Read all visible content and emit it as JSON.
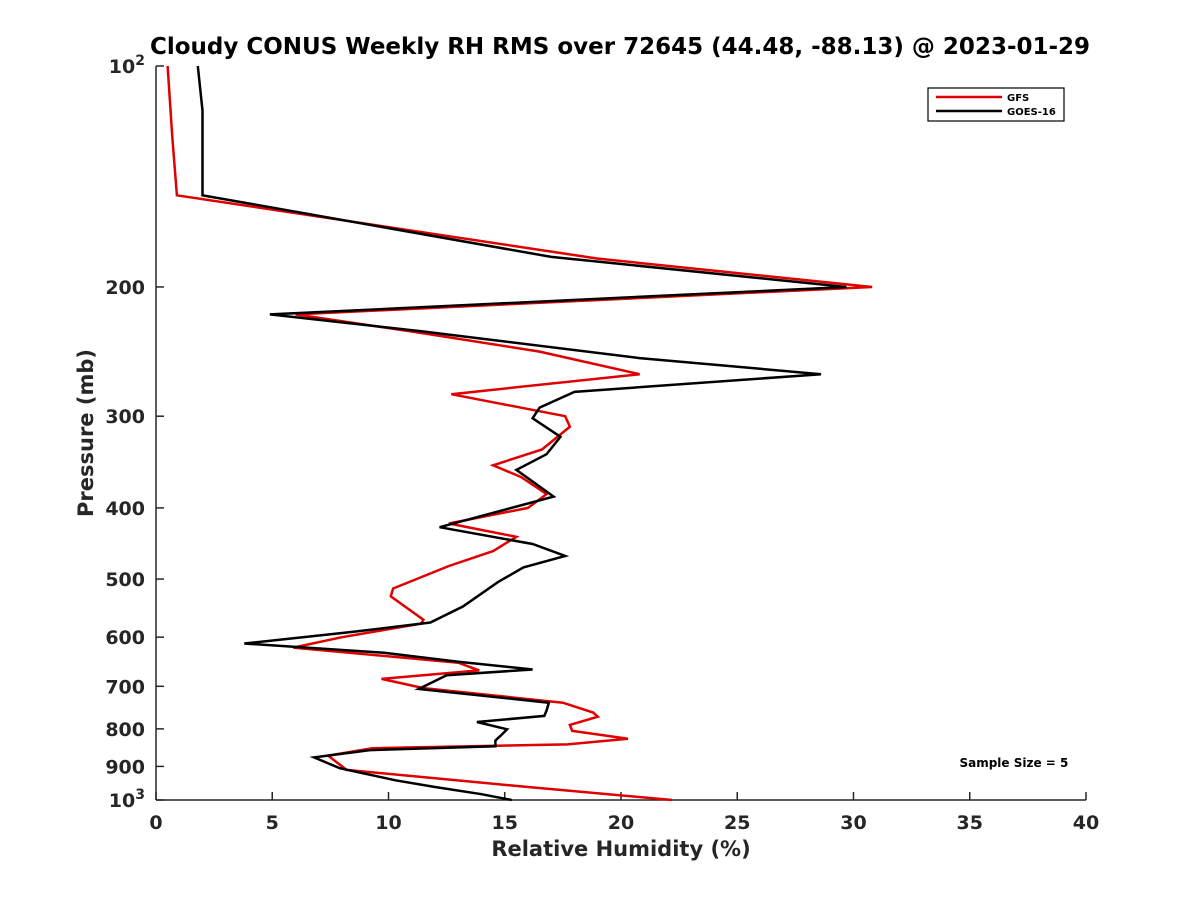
{
  "chart_data": {
    "type": "line",
    "title": "Cloudy CONUS Weekly RH RMS over 72645 (44.48, -88.13) @ 2023-01-29",
    "xlabel": "Relative Humidity (%)",
    "ylabel": "Pressure (mb)",
    "xlim": [
      0,
      40
    ],
    "ylim": [
      100,
      1000
    ],
    "y_scale": "log",
    "y_reversed": true,
    "grid": false,
    "legend_position": "top-right",
    "x_ticks": [
      {
        "value": 0,
        "label": "0"
      },
      {
        "value": 5,
        "label": "5"
      },
      {
        "value": 10,
        "label": "10"
      },
      {
        "value": 15,
        "label": "15"
      },
      {
        "value": 20,
        "label": "20"
      },
      {
        "value": 25,
        "label": "25"
      },
      {
        "value": 30,
        "label": "30"
      },
      {
        "value": 35,
        "label": "35"
      },
      {
        "value": 40,
        "label": "40"
      }
    ],
    "y_ticks": [
      {
        "value": 100,
        "base": "10",
        "exp": "2"
      },
      {
        "value": 200,
        "label": "200"
      },
      {
        "value": 300,
        "label": "300"
      },
      {
        "value": 400,
        "label": "400"
      },
      {
        "value": 500,
        "label": "500"
      },
      {
        "value": 600,
        "label": "600"
      },
      {
        "value": 700,
        "label": "700"
      },
      {
        "value": 800,
        "label": "800"
      },
      {
        "value": 900,
        "label": "900"
      },
      {
        "value": 1000,
        "base": "10",
        "exp": "3"
      }
    ],
    "annotations": [
      {
        "text": "Sample Size = 5",
        "x": 36.9,
        "p": 905
      }
    ],
    "series": [
      {
        "name": "GFS",
        "color": "#e00000",
        "points": [
          [
            0.5,
            100
          ],
          [
            0.7,
            125
          ],
          [
            0.9,
            150
          ],
          [
            19,
            183
          ],
          [
            30.8,
            200
          ],
          [
            6,
            218
          ],
          [
            11,
            230
          ],
          [
            16.5,
            245
          ],
          [
            20.8,
            263
          ],
          [
            12.7,
            280
          ],
          [
            17.6,
            300
          ],
          [
            17.8,
            310
          ],
          [
            16.6,
            333
          ],
          [
            14.5,
            350
          ],
          [
            15.7,
            363
          ],
          [
            16.8,
            383
          ],
          [
            16,
            400
          ],
          [
            12.6,
            420
          ],
          [
            15.5,
            438
          ],
          [
            14.5,
            458
          ],
          [
            12.6,
            480
          ],
          [
            10.2,
            515
          ],
          [
            10.1,
            528
          ],
          [
            11.5,
            568
          ],
          [
            11.4,
            575
          ],
          [
            8,
            600
          ],
          [
            5.9,
            620
          ],
          [
            13,
            650
          ],
          [
            13.9,
            666
          ],
          [
            9.7,
            684
          ],
          [
            11.5,
            704
          ],
          [
            17.5,
            737
          ],
          [
            18.8,
            760
          ],
          [
            19,
            770
          ],
          [
            17.8,
            790
          ],
          [
            17.9,
            805
          ],
          [
            20.3,
            825
          ],
          [
            17.7,
            840
          ],
          [
            9.3,
            850
          ],
          [
            7.4,
            870
          ],
          [
            8.2,
            910
          ],
          [
            16,
            960
          ],
          [
            22.2,
            1000
          ]
        ]
      },
      {
        "name": "GOES-16",
        "color": "#000000",
        "points": [
          [
            1.8,
            100
          ],
          [
            2,
            115
          ],
          [
            2,
            150
          ],
          [
            17,
            182
          ],
          [
            29.7,
            200
          ],
          [
            4.9,
            218
          ],
          [
            11.5,
            230
          ],
          [
            20.8,
            250
          ],
          [
            28.6,
            263
          ],
          [
            18,
            278
          ],
          [
            16.5,
            292
          ],
          [
            16.2,
            302
          ],
          [
            17.4,
            320
          ],
          [
            16.8,
            338
          ],
          [
            15.5,
            355
          ],
          [
            17.1,
            386
          ],
          [
            12.2,
            425
          ],
          [
            16.2,
            448
          ],
          [
            17.6,
            465
          ],
          [
            15.8,
            482
          ],
          [
            14.7,
            505
          ],
          [
            13.2,
            545
          ],
          [
            11.8,
            573
          ],
          [
            8.5,
            590
          ],
          [
            3.8,
            612
          ],
          [
            9.8,
            630
          ],
          [
            13,
            648
          ],
          [
            16.2,
            664
          ],
          [
            12.5,
            676
          ],
          [
            11.3,
            706
          ],
          [
            16.9,
            737
          ],
          [
            16.8,
            755
          ],
          [
            16.7,
            768
          ],
          [
            13.8,
            783
          ],
          [
            15.1,
            801
          ],
          [
            14.9,
            813
          ],
          [
            14.6,
            830
          ],
          [
            14.6,
            845
          ],
          [
            9.2,
            855
          ],
          [
            6.8,
            875
          ],
          [
            7.9,
            905
          ],
          [
            10.3,
            940
          ],
          [
            12,
            960
          ],
          [
            14,
            982
          ],
          [
            15.3,
            1000
          ]
        ]
      }
    ]
  }
}
